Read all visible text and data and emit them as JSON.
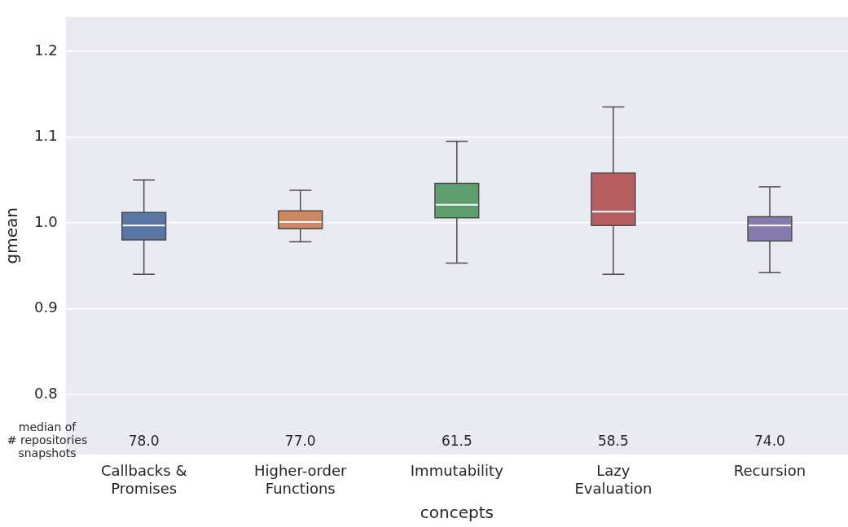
{
  "chart_data": {
    "type": "box",
    "xlabel": "concepts",
    "ylabel": "gmean",
    "categories": [
      "Callbacks &\nPromises",
      "Higher-order\nFunctions",
      "Immutability",
      "Lazy\nEvaluation",
      "Recursion"
    ],
    "colors": [
      "#5975a4",
      "#cc8963",
      "#5f9e6e",
      "#b55d60",
      "#857aab"
    ],
    "boxes": [
      {
        "low": 0.94,
        "q1": 0.98,
        "median": 0.997,
        "q3": 1.012,
        "high": 1.05
      },
      {
        "low": 0.978,
        "q1": 0.993,
        "median": 1.001,
        "q3": 1.014,
        "high": 1.038
      },
      {
        "low": 0.953,
        "q1": 1.006,
        "median": 1.021,
        "q3": 1.046,
        "high": 1.095
      },
      {
        "low": 0.94,
        "q1": 0.997,
        "median": 1.013,
        "q3": 1.058,
        "high": 1.135
      },
      {
        "low": 0.942,
        "q1": 0.979,
        "median": 0.997,
        "q3": 1.007,
        "high": 1.042
      }
    ],
    "ylim": [
      0.73,
      1.24
    ],
    "yticks": [
      0.8,
      0.9,
      {
        "value": 1,
        "label": "1.0"
      },
      1.1,
      1.2
    ],
    "grid": "y",
    "annotations": [
      "median of\n# repositories\nsnapshots",
      "78.0",
      "77.0",
      "61.5",
      "58.5",
      "74.0"
    ]
  }
}
